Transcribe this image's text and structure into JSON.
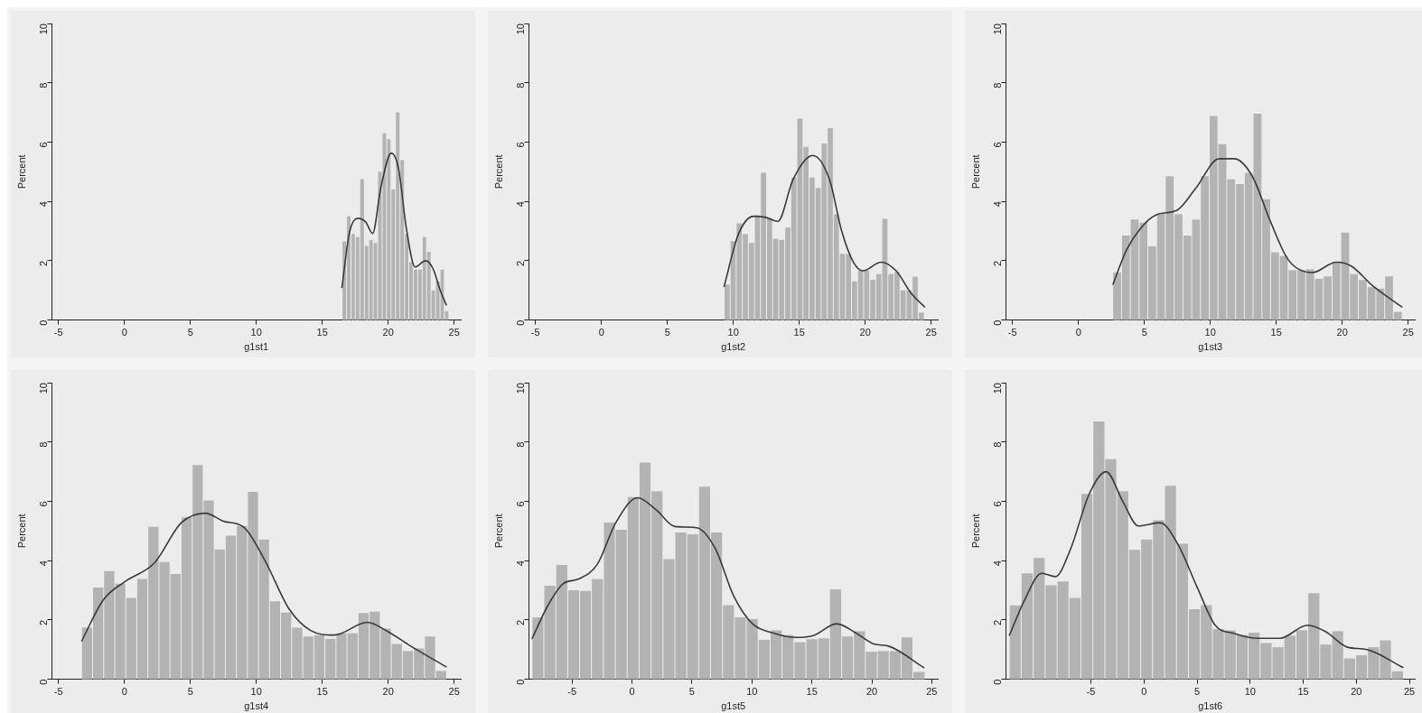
{
  "chart_data": [
    {
      "type": "histogram",
      "xlabel": "g1st1",
      "ylabel": "Percent",
      "xlim": [
        -5.5,
        25.5
      ],
      "xticks": [
        -5,
        0,
        5,
        10,
        15,
        20,
        25
      ],
      "ylim": [
        0,
        10
      ],
      "yticks": [
        0,
        2,
        4,
        6,
        8,
        10
      ],
      "series": [
        {
          "type": "histogram",
          "color": "#b3b3b3",
          "bins": [
            16.5,
            16.84,
            17.18,
            17.51,
            17.85,
            18.19,
            18.53,
            18.86,
            19.2,
            19.54,
            19.88,
            20.21,
            20.55,
            20.89,
            21.23,
            21.56,
            21.9,
            22.24,
            22.58,
            22.91,
            23.25,
            23.59,
            23.93,
            24.26,
            24.6
          ],
          "values": [
            2.65,
            3.5,
            2.9,
            2.8,
            4.75,
            2.5,
            2.7,
            2.6,
            5.0,
            6.3,
            6.1,
            4.4,
            7.0,
            5.4,
            2.9,
            1.95,
            1.7,
            1.7,
            2.8,
            2.3,
            1.0,
            1.3,
            1.7,
            0.3
          ]
        },
        {
          "type": "line",
          "color": "#3a3a3a",
          "x": [
            16.49,
            17.05,
            17.73,
            18.3,
            18.82,
            19.43,
            20.23,
            20.79,
            21.36,
            22.04,
            22.83,
            23.4,
            23.97,
            24.42
          ],
          "values": [
            1.08,
            2.92,
            3.43,
            3.3,
            2.92,
            4.44,
            5.63,
            5.09,
            3.14,
            1.79,
            2.0,
            1.73,
            0.97,
            0.49
          ]
        }
      ]
    },
    {
      "type": "histogram",
      "xlabel": "g1st2",
      "ylabel": "Percent",
      "xlim": [
        -5.5,
        25.5
      ],
      "xticks": [
        -5,
        0,
        5,
        10,
        15,
        20,
        25
      ],
      "ylim": [
        0,
        10
      ],
      "yticks": [
        0,
        2,
        4,
        6,
        8,
        10
      ],
      "series": [
        {
          "type": "histogram",
          "color": "#b3b3b3",
          "bins": [
            9.3,
            9.76,
            10.22,
            10.68,
            11.14,
            11.6,
            12.06,
            12.52,
            12.98,
            13.44,
            13.9,
            14.36,
            14.82,
            15.28,
            15.74,
            16.2,
            16.66,
            17.12,
            17.58,
            18.04,
            18.5,
            18.96,
            19.42,
            19.88,
            20.34,
            20.8,
            21.26,
            21.72,
            22.18,
            22.64,
            23.1,
            23.56,
            24.02,
            24.48
          ],
          "values": [
            1.2,
            2.66,
            3.26,
            2.9,
            2.6,
            3.53,
            4.96,
            3.44,
            2.74,
            2.7,
            3.12,
            4.8,
            6.8,
            5.84,
            4.8,
            4.45,
            5.95,
            6.47,
            3.57,
            2.23,
            2.23,
            1.3,
            1.66,
            1.66,
            1.36,
            1.55,
            3.41,
            1.55,
            1.62,
            1.0,
            1.0,
            1.46,
            0.25
          ]
        },
        {
          "type": "line",
          "color": "#3a3a3a",
          "x": [
            9.29,
            10.39,
            11.54,
            12.46,
            13.38,
            14.53,
            16.02,
            17.29,
            18.21,
            19.13,
            19.82,
            21.2,
            22.34,
            23.49,
            24.53
          ],
          "values": [
            1.11,
            2.9,
            3.5,
            3.46,
            3.33,
            4.74,
            5.55,
            4.74,
            3.01,
            1.93,
            1.66,
            1.95,
            1.66,
            0.9,
            0.43
          ]
        }
      ]
    },
    {
      "type": "histogram",
      "xlabel": "g1st3",
      "ylabel": "Percent",
      "xlim": [
        -5.5,
        25.5
      ],
      "xticks": [
        -5,
        0,
        5,
        10,
        15,
        20,
        25
      ],
      "ylim": [
        0,
        10
      ],
      "yticks": [
        0,
        2,
        4,
        6,
        8,
        10
      ],
      "series": [
        {
          "type": "histogram",
          "color": "#b3b3b3",
          "bins": [
            2.6,
            3.27,
            3.93,
            4.6,
            5.26,
            5.93,
            6.59,
            7.26,
            7.92,
            8.59,
            9.25,
            9.92,
            10.58,
            11.25,
            11.91,
            12.58,
            13.24,
            13.91,
            14.57,
            15.24,
            15.9,
            16.57,
            17.23,
            17.9,
            18.56,
            19.23,
            19.89,
            20.56,
            21.22,
            21.89,
            22.55,
            23.22,
            23.88,
            24.55
          ],
          "values": [
            1.6,
            2.85,
            3.39,
            3.28,
            2.49,
            3.57,
            4.85,
            3.57,
            2.85,
            3.39,
            4.85,
            6.88,
            5.93,
            4.74,
            4.58,
            4.96,
            6.96,
            4.07,
            2.28,
            2.16,
            1.68,
            1.68,
            1.71,
            1.39,
            1.47,
            1.95,
            2.95,
            1.55,
            1.35,
            1.11,
            1.06,
            1.47,
            0.27
          ]
        },
        {
          "type": "line",
          "color": "#3a3a3a",
          "x": [
            2.61,
            3.64,
            4.77,
            5.91,
            7.5,
            8.86,
            10.68,
            11.82,
            13.18,
            14.55,
            15.91,
            17.73,
            19.55,
            20.68,
            22.27,
            24.55
          ],
          "values": [
            1.19,
            2.36,
            3.12,
            3.55,
            3.71,
            4.42,
            5.44,
            5.44,
            4.85,
            3.33,
            2.03,
            1.6,
            1.95,
            1.82,
            1.17,
            0.43
          ]
        }
      ]
    },
    {
      "type": "histogram",
      "xlabel": "g1st4",
      "ylabel": "Percent",
      "xlim": [
        -5.5,
        25.5
      ],
      "xticks": [
        -5,
        0,
        5,
        10,
        15,
        20,
        25
      ],
      "ylim": [
        0,
        10
      ],
      "yticks": [
        0,
        2,
        4,
        6,
        8,
        10
      ],
      "series": [
        {
          "type": "histogram",
          "color": "#b3b3b3",
          "bins": [
            -3.25,
            -2.41,
            -1.57,
            -0.73,
            0.1,
            0.94,
            1.78,
            2.62,
            3.46,
            4.3,
            5.14,
            5.97,
            6.81,
            7.65,
            8.49,
            9.33,
            10.17,
            11.0,
            11.84,
            12.68,
            13.52,
            14.36,
            15.2,
            16.04,
            16.88,
            17.72,
            18.56,
            19.4,
            20.23,
            21.07,
            21.91,
            22.75,
            23.59,
            24.43
          ],
          "values": [
            1.74,
            3.09,
            3.65,
            3.22,
            2.74,
            3.38,
            5.14,
            3.95,
            3.55,
            5.46,
            7.22,
            6.03,
            4.38,
            4.84,
            5.17,
            6.32,
            4.71,
            2.63,
            2.25,
            1.74,
            1.44,
            1.49,
            1.36,
            1.55,
            1.55,
            2.23,
            2.28,
            1.71,
            1.19,
            0.95,
            1.04,
            1.44,
            0.28
          ]
        },
        {
          "type": "line",
          "color": "#3a3a3a",
          "x": [
            -3.25,
            -1.59,
            0,
            2.27,
            4.32,
            6.14,
            7.5,
            9.09,
            10.68,
            12.5,
            14.09,
            15.91,
            18.41,
            20.0,
            21.59,
            24.43
          ],
          "values": [
            1.28,
            2.68,
            3.28,
            3.92,
            5.28,
            5.6,
            5.33,
            5.11,
            3.98,
            2.36,
            1.65,
            1.49,
            1.92,
            1.6,
            1.15,
            0.41
          ]
        }
      ]
    },
    {
      "type": "histogram",
      "xlabel": "g1st5",
      "ylabel": "Percent",
      "xlim": [
        -8.6,
        25.5
      ],
      "xticks": [
        -5,
        0,
        5,
        10,
        15,
        20,
        25
      ],
      "ylim": [
        0,
        10
      ],
      "yticks": [
        0,
        2,
        4,
        6,
        8,
        10
      ],
      "series": [
        {
          "type": "histogram",
          "color": "#b3b3b3",
          "bins": [
            -8.34,
            -7.35,
            -6.35,
            -5.36,
            -4.37,
            -3.38,
            -2.38,
            -1.39,
            -0.4,
            0.6,
            1.59,
            2.58,
            3.58,
            4.57,
            5.56,
            6.55,
            7.55,
            8.54,
            9.53,
            10.53,
            11.52,
            12.51,
            13.51,
            14.5,
            15.49,
            16.48,
            17.48,
            18.47,
            19.46,
            20.46,
            21.45,
            22.44,
            23.43,
            24.43
          ],
          "values": [
            2.09,
            3.15,
            3.85,
            3.0,
            2.98,
            3.38,
            5.28,
            5.04,
            6.14,
            7.31,
            6.34,
            4.05,
            4.95,
            4.89,
            6.49,
            4.95,
            2.5,
            2.09,
            2.03,
            1.33,
            1.65,
            1.49,
            1.25,
            1.35,
            1.38,
            3.03,
            1.44,
            1.62,
            0.93,
            0.95,
            0.95,
            1.41,
            0.25
          ]
        },
        {
          "type": "line",
          "color": "#3a3a3a",
          "x": [
            -8.34,
            -7.05,
            -5.75,
            -4.46,
            -2.9,
            -1.35,
            0.47,
            2.02,
            3.58,
            5.39,
            6.94,
            8.5,
            10.05,
            11.87,
            13.68,
            15.23,
            17.05,
            18.6,
            20.16,
            21.45,
            24.38
          ],
          "values": [
            1.36,
            2.46,
            3.22,
            3.38,
            3.87,
            5.28,
            6.12,
            5.71,
            5.15,
            5.11,
            4.41,
            2.79,
            1.87,
            1.55,
            1.41,
            1.49,
            1.87,
            1.58,
            1.19,
            1.11,
            0.38
          ]
        }
      ]
    },
    {
      "type": "histogram",
      "xlabel": "g1st6",
      "ylabel": "Percent",
      "xlim": [
        -13,
        25.5
      ],
      "xticks": [
        -5,
        0,
        5,
        10,
        15,
        20,
        25
      ],
      "ylim": [
        0,
        10
      ],
      "yticks": [
        0,
        2,
        4,
        6,
        8,
        10
      ],
      "series": [
        {
          "type": "histogram",
          "color": "#b3b3b3",
          "bins": [
            -12.68,
            -11.56,
            -10.43,
            -9.31,
            -8.18,
            -7.06,
            -5.93,
            -4.81,
            -3.68,
            -2.56,
            -1.44,
            -0.31,
            0.81,
            1.94,
            3.06,
            4.19,
            5.31,
            6.44,
            7.56,
            8.68,
            9.81,
            10.93,
            12.06,
            13.18,
            14.31,
            15.43,
            16.56,
            17.68,
            18.8,
            19.93,
            21.05,
            22.18,
            23.3,
            24.43
          ],
          "values": [
            2.49,
            3.57,
            4.09,
            3.17,
            3.3,
            2.74,
            6.25,
            8.69,
            7.42,
            6.34,
            4.36,
            4.71,
            5.36,
            6.52,
            4.57,
            2.36,
            2.5,
            1.69,
            1.65,
            1.49,
            1.57,
            1.22,
            1.08,
            1.47,
            1.65,
            2.9,
            1.17,
            1.62,
            0.7,
            0.81,
            1.08,
            1.31,
            0.27
          ]
        },
        {
          "type": "line",
          "color": "#3a3a3a",
          "x": [
            -12.68,
            -11.23,
            -9.64,
            -8.34,
            -6.89,
            -5.15,
            -3.56,
            -1.97,
            -0.52,
            1.51,
            3.24,
            5.0,
            6.71,
            8.45,
            10.77,
            12.79,
            15.4,
            17.13,
            19.16,
            20.9,
            24.43
          ],
          "values": [
            1.47,
            2.68,
            3.57,
            3.46,
            4.41,
            6.25,
            7.0,
            5.98,
            5.17,
            5.28,
            4.52,
            3.11,
            1.82,
            1.55,
            1.38,
            1.38,
            1.82,
            1.6,
            1.08,
            1.01,
            0.39
          ]
        }
      ]
    }
  ]
}
